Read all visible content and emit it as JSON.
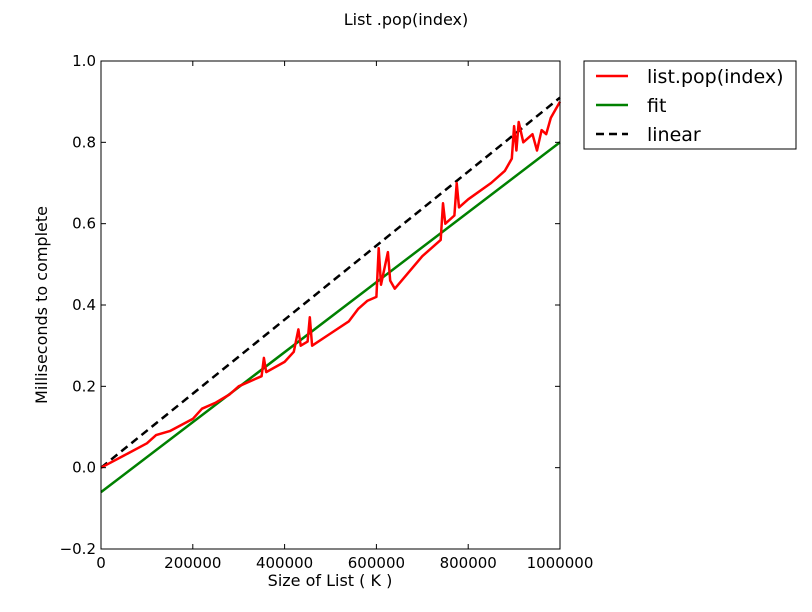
{
  "chart_data": {
    "type": "line",
    "title": "List .pop(index)",
    "xlabel": "Size of List ( K )",
    "ylabel": "Milliseconds to complete",
    "xlim": [
      0,
      1000000
    ],
    "ylim": [
      -0.2,
      1.0
    ],
    "x_ticks": [
      0,
      200000,
      400000,
      600000,
      800000,
      1000000
    ],
    "x_tick_labels": [
      "0",
      "200000",
      "400000",
      "600000",
      "800000",
      "1000000"
    ],
    "y_ticks": [
      -0.2,
      0.0,
      0.2,
      0.4,
      0.6,
      0.8,
      1.0
    ],
    "y_tick_labels": [
      "−0.2",
      "0.0",
      "0.2",
      "0.4",
      "0.6",
      "0.8",
      "1.0"
    ],
    "grid": false,
    "legend_position": "outside-top-right",
    "series": [
      {
        "name": "list.pop(index)",
        "color": "#ff0000",
        "style": "solid",
        "points": [
          [
            0,
            0.0
          ],
          [
            50000,
            0.03
          ],
          [
            100000,
            0.06
          ],
          [
            120000,
            0.08
          ],
          [
            150000,
            0.09
          ],
          [
            200000,
            0.12
          ],
          [
            220000,
            0.145
          ],
          [
            250000,
            0.16
          ],
          [
            280000,
            0.18
          ],
          [
            300000,
            0.2
          ],
          [
            350000,
            0.225
          ],
          [
            355000,
            0.27
          ],
          [
            360000,
            0.235
          ],
          [
            400000,
            0.26
          ],
          [
            420000,
            0.285
          ],
          [
            430000,
            0.34
          ],
          [
            435000,
            0.3
          ],
          [
            450000,
            0.31
          ],
          [
            455000,
            0.37
          ],
          [
            460000,
            0.3
          ],
          [
            500000,
            0.33
          ],
          [
            540000,
            0.36
          ],
          [
            560000,
            0.39
          ],
          [
            580000,
            0.41
          ],
          [
            600000,
            0.42
          ],
          [
            605000,
            0.54
          ],
          [
            610000,
            0.45
          ],
          [
            625000,
            0.53
          ],
          [
            630000,
            0.46
          ],
          [
            640000,
            0.44
          ],
          [
            700000,
            0.52
          ],
          [
            740000,
            0.56
          ],
          [
            745000,
            0.65
          ],
          [
            750000,
            0.6
          ],
          [
            770000,
            0.62
          ],
          [
            775000,
            0.7
          ],
          [
            780000,
            0.64
          ],
          [
            800000,
            0.66
          ],
          [
            850000,
            0.7
          ],
          [
            880000,
            0.73
          ],
          [
            895000,
            0.76
          ],
          [
            900000,
            0.84
          ],
          [
            905000,
            0.78
          ],
          [
            910000,
            0.85
          ],
          [
            920000,
            0.8
          ],
          [
            940000,
            0.82
          ],
          [
            950000,
            0.78
          ],
          [
            960000,
            0.83
          ],
          [
            970000,
            0.82
          ],
          [
            980000,
            0.86
          ],
          [
            990000,
            0.88
          ],
          [
            1000000,
            0.9
          ]
        ]
      },
      {
        "name": "fit",
        "color": "#008000",
        "style": "solid",
        "points": [
          [
            0,
            -0.06
          ],
          [
            1000000,
            0.8
          ]
        ]
      },
      {
        "name": "linear",
        "color": "#000000",
        "style": "dashed",
        "points": [
          [
            0,
            0.0
          ],
          [
            1000000,
            0.91
          ]
        ]
      }
    ]
  }
}
